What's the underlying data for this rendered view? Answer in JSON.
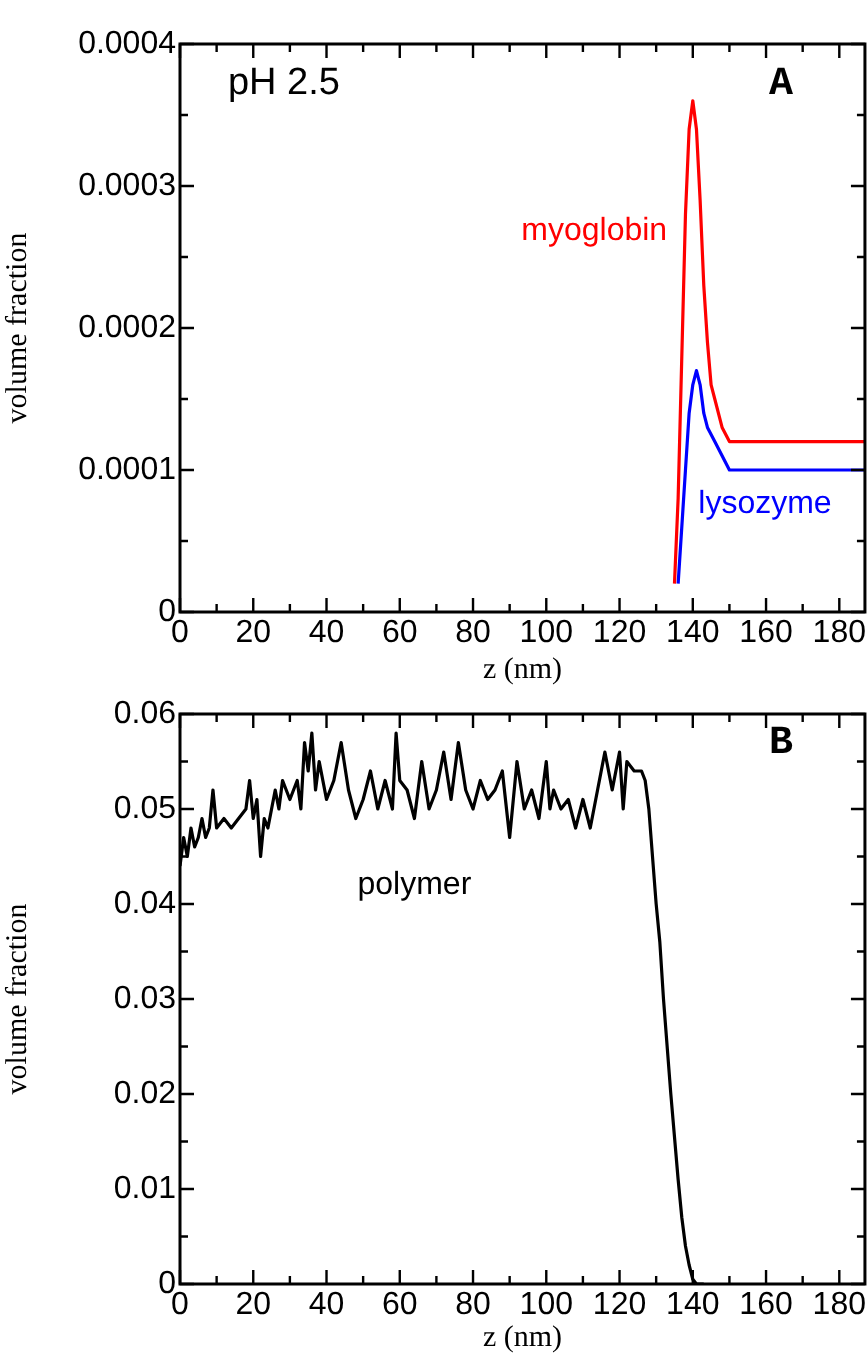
{
  "chart_data": [
    {
      "type": "line",
      "xlabel": "z (nm)",
      "ylabel": "volume fraction",
      "annotations": [
        "pH 2.5",
        "A"
      ],
      "legend": false,
      "grid": false,
      "marker": "none",
      "line_style": "solid",
      "xlim": [
        0,
        187
      ],
      "xticks": [
        0,
        {
          "value": 10,
          "label": null
        },
        20,
        {
          "value": 30,
          "label": null
        },
        40,
        {
          "value": 50,
          "label": null
        },
        60,
        {
          "value": 70,
          "label": null
        },
        80,
        {
          "value": 90,
          "label": null
        },
        100,
        {
          "value": 110,
          "label": null
        },
        120,
        {
          "value": 130,
          "label": null
        },
        140,
        {
          "value": 150,
          "label": null
        },
        160,
        {
          "value": 170,
          "label": null
        },
        180
      ],
      "ylim": [
        0,
        0.0004
      ],
      "yticks": [
        0,
        {
          "value": 5e-05,
          "label": null
        },
        0.0001,
        {
          "value": 0.00015,
          "label": null
        },
        0.0002,
        {
          "value": 0.00025,
          "label": null
        },
        0.0003,
        {
          "value": 0.00035,
          "label": null
        },
        0.0004
      ],
      "series": [
        {
          "name": "myoglobin",
          "color": "#ff0000",
          "x": [
            135,
            136,
            137,
            138,
            139,
            140,
            141,
            142,
            143,
            144,
            145,
            146,
            148,
            150,
            160,
            187
          ],
          "values": [
            2e-05,
            8e-05,
            0.00018,
            0.00028,
            0.00034,
            0.00036,
            0.00034,
            0.00029,
            0.00023,
            0.00019,
            0.00016,
            0.00015,
            0.00013,
            0.00012,
            0.00012,
            0.00012
          ]
        },
        {
          "name": "lysozyme",
          "color": "#0000ff",
          "x": [
            136,
            137,
            138,
            139,
            140,
            141,
            142,
            143,
            144,
            146,
            148,
            150,
            155,
            187
          ],
          "values": [
            2e-05,
            6e-05,
            0.0001,
            0.00014,
            0.00016,
            0.00017,
            0.00016,
            0.00014,
            0.00013,
            0.00012,
            0.00011,
            0.0001,
            0.0001,
            0.0001
          ]
        }
      ]
    },
    {
      "type": "line",
      "xlabel": "z (nm)",
      "ylabel": "volume fraction",
      "annotations": [
        "B"
      ],
      "legend": false,
      "grid": false,
      "marker": "none",
      "line_style": "solid",
      "xlim": [
        0,
        187
      ],
      "xticks": [
        0,
        {
          "value": 10,
          "label": null
        },
        20,
        {
          "value": 30,
          "label": null
        },
        40,
        {
          "value": 50,
          "label": null
        },
        60,
        {
          "value": 70,
          "label": null
        },
        80,
        {
          "value": 90,
          "label": null
        },
        100,
        {
          "value": 110,
          "label": null
        },
        120,
        {
          "value": 130,
          "label": null
        },
        140,
        {
          "value": 150,
          "label": null
        },
        160,
        {
          "value": 170,
          "label": null
        },
        180
      ],
      "ylim": [
        0,
        0.06
      ],
      "yticks": [
        0,
        {
          "value": 0.005,
          "label": null
        },
        0.01,
        {
          "value": 0.015,
          "label": null
        },
        0.02,
        {
          "value": 0.025,
          "label": null
        },
        0.03,
        {
          "value": 0.035,
          "label": null
        },
        0.04,
        {
          "value": 0.045,
          "label": null
        },
        0.05,
        {
          "value": 0.055,
          "label": null
        },
        0.06
      ],
      "series": [
        {
          "name": "polymer",
          "color": "#000000",
          "x": [
            0,
            1,
            2,
            3,
            4,
            5,
            6,
            7,
            8,
            9,
            10,
            12,
            14,
            16,
            18,
            19,
            20,
            21,
            22,
            23,
            24,
            25,
            26,
            27,
            28,
            30,
            32,
            33,
            34,
            35,
            36,
            37,
            38,
            40,
            42,
            44,
            46,
            48,
            50,
            52,
            54,
            56,
            58,
            59,
            60,
            62,
            64,
            66,
            68,
            70,
            72,
            74,
            76,
            78,
            80,
            82,
            84,
            86,
            88,
            90,
            92,
            94,
            96,
            98,
            100,
            101,
            102,
            104,
            106,
            108,
            110,
            112,
            114,
            116,
            118,
            120,
            121,
            122,
            124,
            126,
            127,
            128,
            130,
            131,
            132,
            134,
            136,
            137,
            138,
            139,
            140,
            141,
            143
          ],
          "values": [
            0.044,
            0.047,
            0.045,
            0.048,
            0.046,
            0.047,
            0.049,
            0.047,
            0.048,
            0.052,
            0.048,
            0.049,
            0.048,
            0.049,
            0.05,
            0.053,
            0.049,
            0.051,
            0.045,
            0.049,
            0.048,
            0.05,
            0.052,
            0.05,
            0.053,
            0.051,
            0.053,
            0.05,
            0.057,
            0.054,
            0.058,
            0.052,
            0.055,
            0.051,
            0.053,
            0.057,
            0.052,
            0.049,
            0.051,
            0.054,
            0.05,
            0.053,
            0.05,
            0.058,
            0.053,
            0.052,
            0.049,
            0.055,
            0.05,
            0.052,
            0.056,
            0.051,
            0.057,
            0.052,
            0.05,
            0.053,
            0.051,
            0.052,
            0.054,
            0.047,
            0.055,
            0.05,
            0.052,
            0.049,
            0.055,
            0.05,
            0.052,
            0.05,
            0.051,
            0.048,
            0.051,
            0.048,
            0.052,
            0.056,
            0.052,
            0.056,
            0.05,
            0.055,
            0.054,
            0.054,
            0.053,
            0.05,
            0.04,
            0.036,
            0.03,
            0.02,
            0.011,
            0.007,
            0.004,
            0.002,
            0.0005,
            0,
            0
          ]
        }
      ]
    }
  ]
}
